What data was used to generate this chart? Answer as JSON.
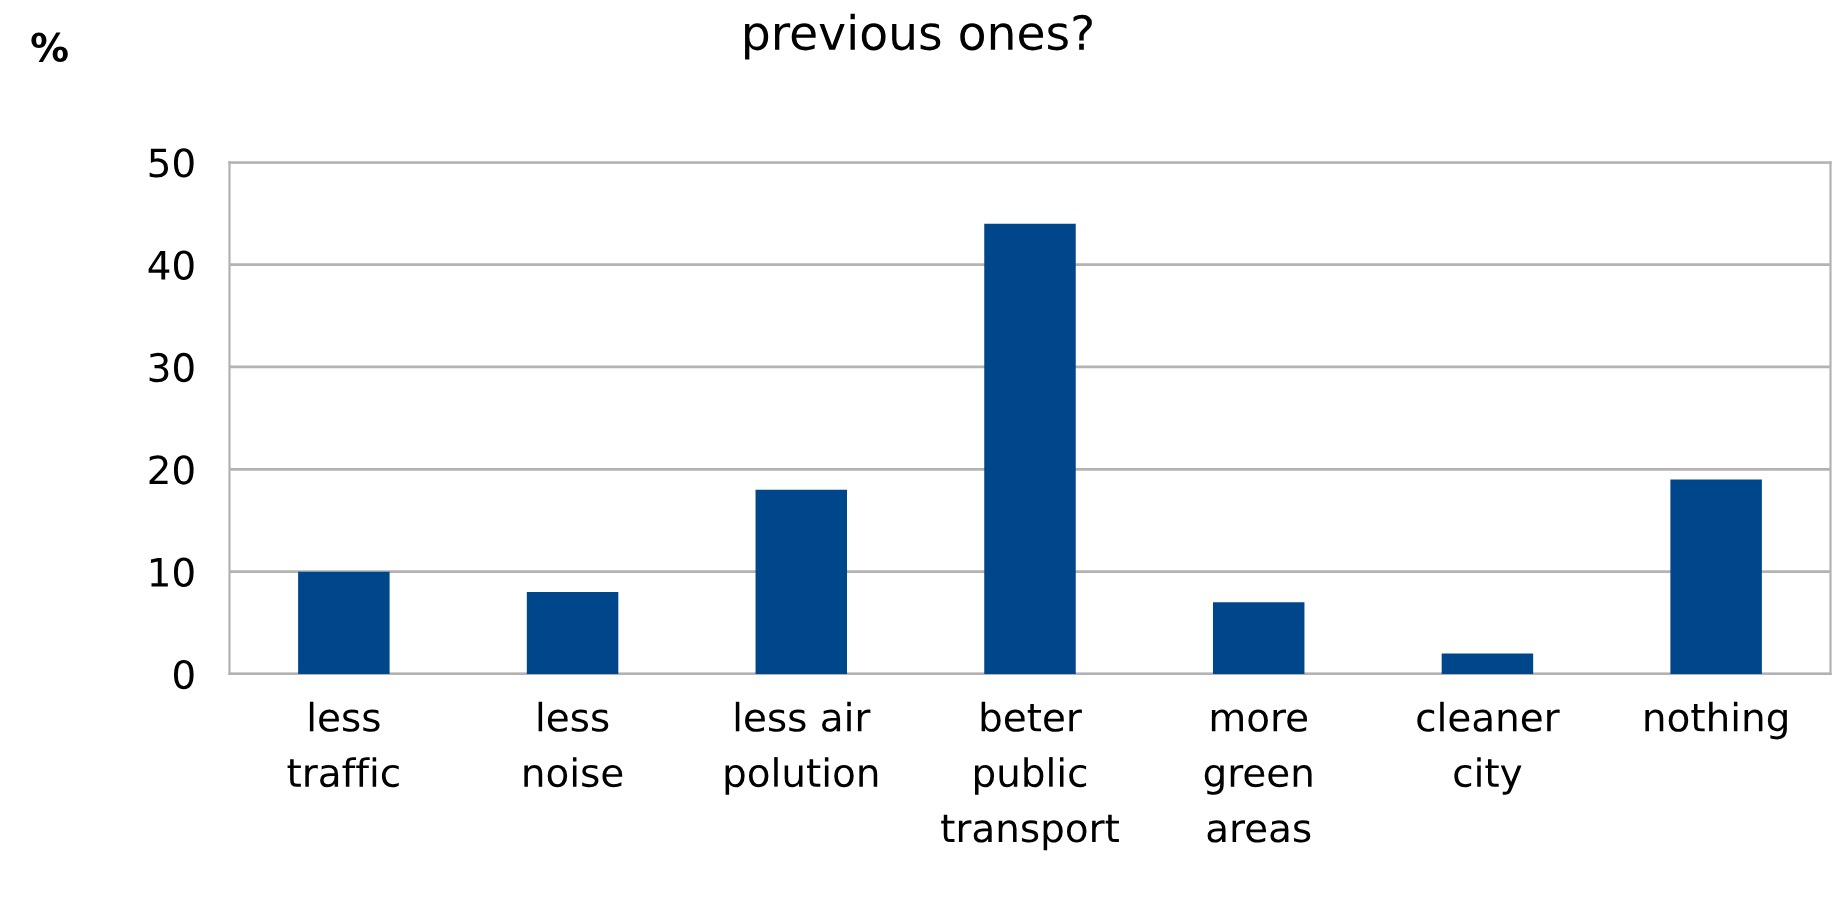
{
  "chart_data": {
    "type": "bar",
    "title": "previous ones?",
    "ylabel": "%",
    "categories": [
      "less\ntraffic",
      "less\nnoise",
      "less air\npolution",
      "beter\npublic\ntransport",
      "more\ngreen\nareas",
      "cleaner\ncity",
      "nothing"
    ],
    "values": [
      10,
      8,
      18,
      44,
      7,
      2,
      19
    ],
    "color": "#00468b",
    "ylim": [
      0,
      50
    ],
    "yticks": [
      0,
      10,
      20,
      30,
      40,
      50
    ],
    "grid": "y",
    "legend": false
  }
}
